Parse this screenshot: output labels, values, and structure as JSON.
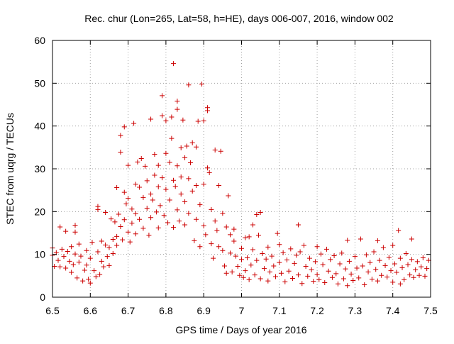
{
  "chart_data": {
    "type": "scatter",
    "title": "Rec. chur (Lon=265, Lat=58, h=HE), days 006-007, 2016, window 002",
    "xlabel": "GPS time / Days of year 2016",
    "ylabel": "STEC from uqrg / TECUs",
    "xlim": [
      6.5,
      7.5
    ],
    "ylim": [
      0,
      60
    ],
    "xticks": [
      "6.5",
      "6.6",
      "6.7",
      "6.8",
      "6.9",
      "7",
      "7.1",
      "7.2",
      "7.3",
      "7.4",
      "7.5"
    ],
    "yticks": [
      "0",
      "10",
      "20",
      "30",
      "40",
      "50",
      "60"
    ],
    "grid": true,
    "marker": "+",
    "color": "#cc0000",
    "points": [
      [
        6.5,
        11.5
      ],
      [
        6.5,
        9.8
      ],
      [
        6.505,
        7.2
      ],
      [
        6.51,
        10.4
      ],
      [
        6.515,
        8.6
      ],
      [
        6.52,
        16.4
      ],
      [
        6.52,
        7.1
      ],
      [
        6.525,
        11.2
      ],
      [
        6.53,
        9.5
      ],
      [
        6.535,
        15.4
      ],
      [
        6.535,
        6.8
      ],
      [
        6.54,
        10.7
      ],
      [
        6.545,
        8.4
      ],
      [
        6.55,
        11.8
      ],
      [
        6.55,
        5.8
      ],
      [
        6.555,
        7.6
      ],
      [
        6.56,
        16.8
      ],
      [
        6.56,
        15.2
      ],
      [
        6.56,
        10.1
      ],
      [
        6.565,
        4.5
      ],
      [
        6.57,
        12.4
      ],
      [
        6.57,
        8.2
      ],
      [
        6.575,
        9.6
      ],
      [
        6.58,
        3.8
      ],
      [
        6.585,
        6.3
      ],
      [
        6.59,
        10.9
      ],
      [
        6.59,
        7.5
      ],
      [
        6.595,
        4.2
      ],
      [
        6.6,
        9.1
      ],
      [
        6.6,
        3.3
      ],
      [
        6.605,
        12.8
      ],
      [
        6.61,
        6.2
      ],
      [
        6.615,
        4.8
      ],
      [
        6.62,
        21.2
      ],
      [
        6.62,
        20.5
      ],
      [
        6.62,
        10.6
      ],
      [
        6.625,
        5.3
      ],
      [
        6.63,
        13.1
      ],
      [
        6.63,
        8.4
      ],
      [
        6.635,
        7.1
      ],
      [
        6.64,
        19.8
      ],
      [
        6.64,
        12.2
      ],
      [
        6.645,
        9.5
      ],
      [
        6.65,
        11.6
      ],
      [
        6.65,
        7.4
      ],
      [
        6.655,
        18.3
      ],
      [
        6.66,
        13.5
      ],
      [
        6.66,
        10.2
      ],
      [
        6.665,
        17.6
      ],
      [
        6.67,
        25.6
      ],
      [
        6.67,
        14.2
      ],
      [
        6.67,
        12.1
      ],
      [
        6.675,
        19.4
      ],
      [
        6.68,
        37.8
      ],
      [
        6.68,
        33.9
      ],
      [
        6.68,
        16.5
      ],
      [
        6.685,
        13.4
      ],
      [
        6.69,
        39.8
      ],
      [
        6.69,
        24.5
      ],
      [
        6.69,
        18.1
      ],
      [
        6.695,
        21.8
      ],
      [
        6.7,
        30.8
      ],
      [
        6.7,
        23.1
      ],
      [
        6.7,
        15.2
      ],
      [
        6.705,
        12.9
      ],
      [
        6.71,
        20.6
      ],
      [
        6.71,
        17.3
      ],
      [
        6.715,
        40.6
      ],
      [
        6.72,
        26.4
      ],
      [
        6.72,
        19.5
      ],
      [
        6.72,
        14.8
      ],
      [
        6.725,
        31.6
      ],
      [
        6.73,
        25.7
      ],
      [
        6.73,
        18.2
      ],
      [
        6.735,
        32.4
      ],
      [
        6.74,
        23.3
      ],
      [
        6.74,
        16.1
      ],
      [
        6.745,
        30.6
      ],
      [
        6.75,
        27.2
      ],
      [
        6.75,
        20.8
      ],
      [
        6.755,
        14.5
      ],
      [
        6.76,
        41.6
      ],
      [
        6.76,
        24.1
      ],
      [
        6.76,
        18.6
      ],
      [
        6.765,
        22.7
      ],
      [
        6.77,
        33.4
      ],
      [
        6.77,
        28.5
      ],
      [
        6.775,
        19.9
      ],
      [
        6.78,
        30.8
      ],
      [
        6.78,
        25.8
      ],
      [
        6.78,
        16.2
      ],
      [
        6.785,
        21.4
      ],
      [
        6.79,
        47.1
      ],
      [
        6.79,
        42.4
      ],
      [
        6.79,
        27.9
      ],
      [
        6.795,
        19.1
      ],
      [
        6.8,
        41.2
      ],
      [
        6.8,
        33.6
      ],
      [
        6.8,
        25.2
      ],
      [
        6.805,
        17.4
      ],
      [
        6.81,
        31.5
      ],
      [
        6.81,
        22.7
      ],
      [
        6.815,
        37.1
      ],
      [
        6.815,
        42.1
      ],
      [
        6.82,
        54.6
      ],
      [
        6.82,
        27.3
      ],
      [
        6.82,
        16.3
      ],
      [
        6.825,
        25.9
      ],
      [
        6.83,
        45.8
      ],
      [
        6.83,
        43.9
      ],
      [
        6.83,
        30.7
      ],
      [
        6.83,
        20.4
      ],
      [
        6.835,
        17.8
      ],
      [
        6.84,
        34.9
      ],
      [
        6.84,
        28.1
      ],
      [
        6.84,
        24.1
      ],
      [
        6.845,
        41.4
      ],
      [
        6.85,
        32.6
      ],
      [
        6.85,
        22.3
      ],
      [
        6.85,
        16.9
      ],
      [
        6.855,
        35.3
      ],
      [
        6.86,
        49.6
      ],
      [
        6.86,
        27.7
      ],
      [
        6.86,
        19.6
      ],
      [
        6.865,
        31.4
      ],
      [
        6.87,
        36.1
      ],
      [
        6.87,
        24.8
      ],
      [
        6.875,
        13.2
      ],
      [
        6.88,
        35.1
      ],
      [
        6.88,
        26.1
      ],
      [
        6.88,
        18.2
      ],
      [
        6.885,
        41.1
      ],
      [
        6.89,
        21.6
      ],
      [
        6.89,
        11.8
      ],
      [
        6.895,
        49.8
      ],
      [
        6.9,
        41.2
      ],
      [
        6.9,
        26.4
      ],
      [
        6.9,
        16.7
      ],
      [
        6.905,
        14.6
      ],
      [
        6.91,
        43.6
      ],
      [
        6.91,
        44.3
      ],
      [
        6.91,
        30.2
      ],
      [
        6.915,
        29.1
      ],
      [
        6.92,
        20.5
      ],
      [
        6.92,
        12.5
      ],
      [
        6.925,
        9.1
      ],
      [
        6.93,
        34.4
      ],
      [
        6.93,
        17.8
      ],
      [
        6.935,
        15.6
      ],
      [
        6.94,
        26.1
      ],
      [
        6.94,
        11.8
      ],
      [
        6.945,
        34.1
      ],
      [
        6.95,
        19.6
      ],
      [
        6.95,
        10.9
      ],
      [
        6.955,
        7.3
      ],
      [
        6.96,
        16.4
      ],
      [
        6.96,
        5.6
      ],
      [
        6.965,
        23.7
      ],
      [
        6.97,
        14.6
      ],
      [
        6.97,
        10.3
      ],
      [
        6.975,
        5.9
      ],
      [
        6.98,
        15.9
      ],
      [
        6.98,
        13.1
      ],
      [
        6.985,
        9.6
      ],
      [
        6.99,
        7.2
      ],
      [
        6.995,
        5.1
      ],
      [
        7.0,
        11.4
      ],
      [
        7.0,
        8.8
      ],
      [
        7.005,
        4.6
      ],
      [
        7.01,
        13.9
      ],
      [
        7.01,
        6.2
      ],
      [
        7.015,
        9.2
      ],
      [
        7.02,
        14.1
      ],
      [
        7.02,
        4.1
      ],
      [
        7.025,
        7.5
      ],
      [
        7.03,
        16.9
      ],
      [
        7.03,
        11.1
      ],
      [
        7.035,
        5.2
      ],
      [
        7.04,
        19.3
      ],
      [
        7.04,
        8.6
      ],
      [
        7.045,
        14.5
      ],
      [
        7.05,
        19.8
      ],
      [
        7.05,
        4.3
      ],
      [
        7.055,
        10.2
      ],
      [
        7.06,
        6.7
      ],
      [
        7.065,
        8.9
      ],
      [
        7.07,
        11.7
      ],
      [
        7.07,
        3.8
      ],
      [
        7.075,
        5.9
      ],
      [
        7.08,
        9.6
      ],
      [
        7.085,
        7.3
      ],
      [
        7.09,
        4.8
      ],
      [
        7.095,
        14.9
      ],
      [
        7.1,
        12.3
      ],
      [
        7.1,
        8.1
      ],
      [
        7.105,
        5.6
      ],
      [
        7.11,
        10.4
      ],
      [
        7.115,
        3.6
      ],
      [
        7.12,
        8.7
      ],
      [
        7.125,
        6.1
      ],
      [
        7.13,
        11.3
      ],
      [
        7.135,
        4.4
      ],
      [
        7.14,
        7.9
      ],
      [
        7.145,
        9.8
      ],
      [
        7.15,
        16.9
      ],
      [
        7.15,
        5.2
      ],
      [
        7.155,
        10.6
      ],
      [
        7.16,
        3.2
      ],
      [
        7.165,
        12.1
      ],
      [
        7.17,
        7.2
      ],
      [
        7.175,
        4.9
      ],
      [
        7.18,
        9.1
      ],
      [
        7.185,
        6.4
      ],
      [
        7.19,
        3.7
      ],
      [
        7.195,
        8.3
      ],
      [
        7.2,
        11.8
      ],
      [
        7.2,
        5.3
      ],
      [
        7.205,
        4.1
      ],
      [
        7.21,
        10.1
      ],
      [
        7.215,
        7.6
      ],
      [
        7.22,
        3.4
      ],
      [
        7.225,
        11.2
      ],
      [
        7.23,
        6.1
      ],
      [
        7.235,
        8.8
      ],
      [
        7.24,
        4.6
      ],
      [
        7.245,
        9.7
      ],
      [
        7.25,
        5.5
      ],
      [
        7.255,
        3.1
      ],
      [
        7.26,
        7.8
      ],
      [
        7.265,
        10.3
      ],
      [
        7.27,
        4.3
      ],
      [
        7.275,
        6.6
      ],
      [
        7.28,
        13.3
      ],
      [
        7.28,
        2.7
      ],
      [
        7.285,
        8.4
      ],
      [
        7.29,
        5.4
      ],
      [
        7.295,
        3.9
      ],
      [
        7.3,
        9.5
      ],
      [
        7.305,
        6.8
      ],
      [
        7.31,
        4.5
      ],
      [
        7.315,
        13.6
      ],
      [
        7.32,
        7.3
      ],
      [
        7.325,
        2.9
      ],
      [
        7.33,
        9.9
      ],
      [
        7.335,
        5.9
      ],
      [
        7.34,
        8.1
      ],
      [
        7.345,
        4.2
      ],
      [
        7.35,
        10.6
      ],
      [
        7.355,
        6.5
      ],
      [
        7.36,
        13.2
      ],
      [
        7.36,
        3.8
      ],
      [
        7.365,
        8.6
      ],
      [
        7.37,
        5.1
      ],
      [
        7.375,
        11.6
      ],
      [
        7.38,
        7.4
      ],
      [
        7.385,
        4.7
      ],
      [
        7.39,
        9.3
      ],
      [
        7.395,
        6.2
      ],
      [
        7.4,
        12.1
      ],
      [
        7.4,
        3.5
      ],
      [
        7.405,
        7.8
      ],
      [
        7.41,
        5.8
      ],
      [
        7.415,
        15.6
      ],
      [
        7.42,
        9.1
      ],
      [
        7.42,
        3.1
      ],
      [
        7.425,
        6.9
      ],
      [
        7.43,
        4.1
      ],
      [
        7.435,
        10.2
      ],
      [
        7.44,
        7.6
      ],
      [
        7.445,
        5.2
      ],
      [
        7.45,
        13.6
      ],
      [
        7.45,
        8.8
      ],
      [
        7.455,
        4.6
      ],
      [
        7.46,
        6.4
      ],
      [
        7.465,
        8.3
      ],
      [
        7.47,
        5.1
      ],
      [
        7.475,
        7.1
      ],
      [
        7.48,
        9.2
      ],
      [
        7.485,
        4.9
      ],
      [
        7.49,
        6.7
      ],
      [
        7.495,
        8.6
      ]
    ]
  }
}
